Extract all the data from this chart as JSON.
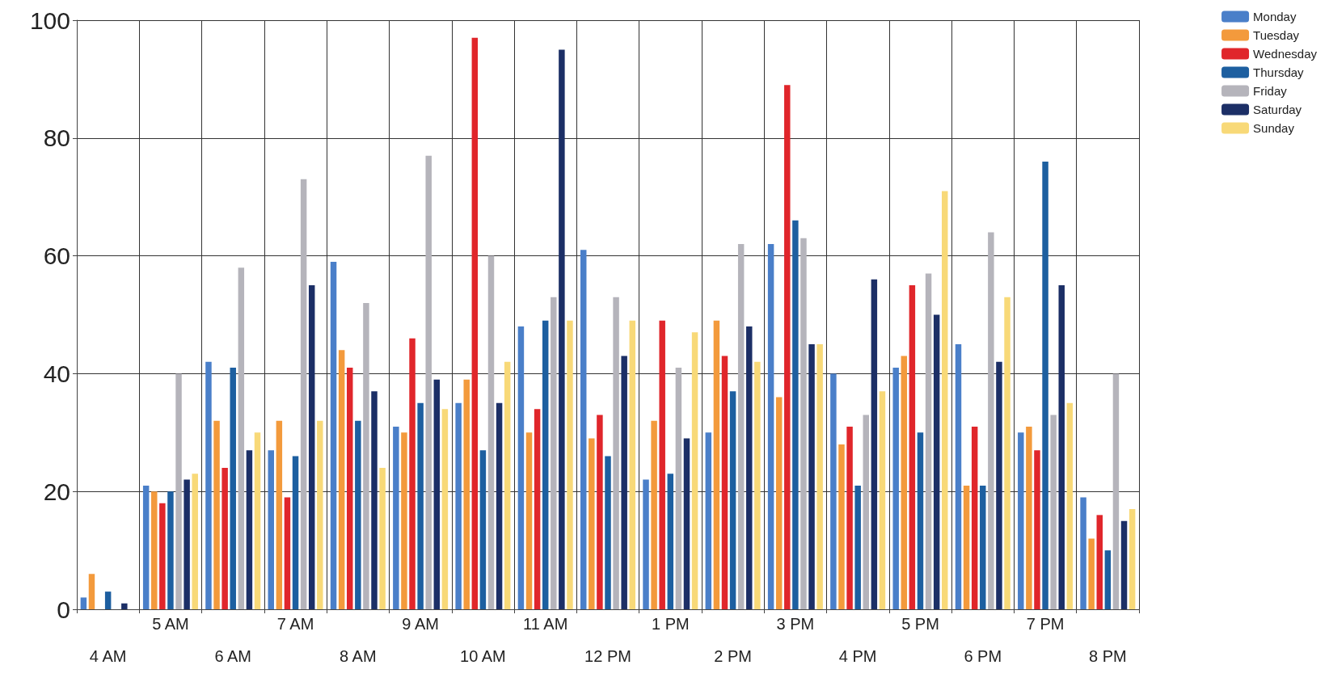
{
  "chart_data": {
    "type": "bar",
    "categories": [
      "4 AM",
      "5 AM",
      "6 AM",
      "7 AM",
      "8 AM",
      "9 AM",
      "10 AM",
      "11 AM",
      "12 PM",
      "1 PM",
      "2 PM",
      "3 PM",
      "4 PM",
      "5 PM",
      "6 PM",
      "7 PM",
      "8 PM"
    ],
    "series": [
      {
        "name": "Monday",
        "color": "#4a7fc9",
        "values": [
          2,
          21,
          42,
          27,
          59,
          31,
          35,
          48,
          61,
          22,
          30,
          62,
          40,
          41,
          45,
          30,
          19
        ]
      },
      {
        "name": "Tuesday",
        "color": "#f39a3c",
        "values": [
          6,
          20,
          32,
          32,
          44,
          30,
          39,
          30,
          29,
          32,
          49,
          36,
          28,
          43,
          21,
          31,
          12
        ]
      },
      {
        "name": "Wednesday",
        "color": "#e0262b",
        "values": [
          0,
          18,
          24,
          19,
          41,
          46,
          97,
          34,
          33,
          49,
          43,
          89,
          31,
          55,
          31,
          27,
          16
        ]
      },
      {
        "name": "Thursday",
        "color": "#1d5fa0",
        "values": [
          3,
          20,
          41,
          26,
          32,
          35,
          27,
          49,
          26,
          23,
          37,
          66,
          21,
          30,
          21,
          76,
          10
        ]
      },
      {
        "name": "Friday",
        "color": "#b5b4bb",
        "values": [
          0,
          40,
          58,
          73,
          52,
          77,
          60,
          53,
          53,
          41,
          62,
          63,
          33,
          57,
          64,
          33,
          40
        ]
      },
      {
        "name": "Saturday",
        "color": "#1c2f66",
        "values": [
          1,
          22,
          27,
          55,
          37,
          39,
          35,
          95,
          43,
          29,
          48,
          45,
          56,
          50,
          42,
          55,
          15
        ]
      },
      {
        "name": "Sunday",
        "color": "#f8d978",
        "values": [
          0,
          23,
          30,
          32,
          24,
          34,
          42,
          49,
          49,
          47,
          42,
          45,
          37,
          71,
          53,
          35,
          17
        ]
      }
    ],
    "ylim": [
      0,
      100
    ],
    "yticks": [
      0,
      20,
      40,
      60,
      80,
      100
    ],
    "grid": true,
    "legend": "top right"
  }
}
